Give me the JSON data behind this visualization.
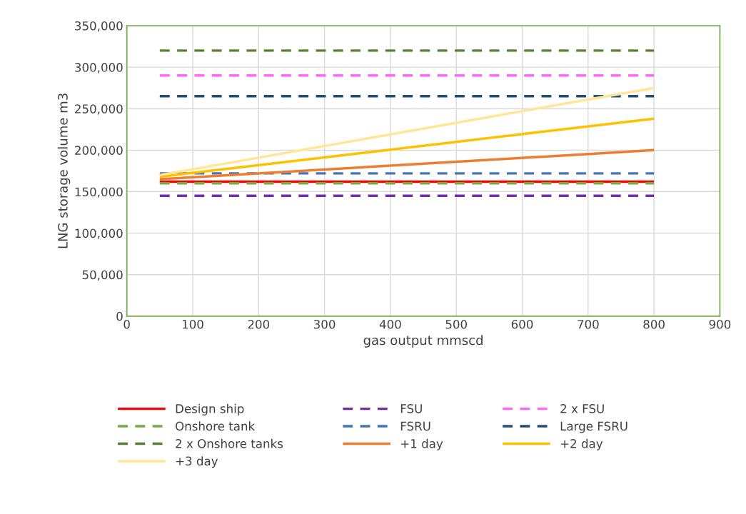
{
  "chart_data": {
    "type": "line",
    "xlabel": "gas output mmscd",
    "ylabel": "LNG storage volume m3",
    "x": [
      50,
      800
    ],
    "xlim": [
      0,
      900
    ],
    "xticks": [
      0,
      100,
      200,
      300,
      400,
      500,
      600,
      700,
      800,
      900
    ],
    "ylim": [
      0,
      350000
    ],
    "yticks": [
      {
        "value": 0,
        "label": "0"
      },
      {
        "value": 50000,
        "label": "50,000"
      },
      {
        "value": 100000,
        "label": "100,000"
      },
      {
        "value": 150000,
        "label": "150,000"
      },
      {
        "value": 200000,
        "label": "200,000"
      },
      {
        "value": 250000,
        "label": "250,000"
      },
      {
        "value": 300000,
        "label": "300,000"
      },
      {
        "value": 350000,
        "label": "350,000"
      }
    ],
    "grid": true,
    "legend": "bottom",
    "series": [
      {
        "name": "Design ship",
        "color": "#ff0000",
        "line_style": "solid",
        "values": [
          162000,
          162000
        ]
      },
      {
        "name": "FSU",
        "color": "#7030a0",
        "line_style": "dashed",
        "values": [
          145000,
          145000
        ]
      },
      {
        "name": "2 x FSU",
        "color": "#ff66ff",
        "line_style": "dashed",
        "values": [
          290000,
          290000
        ]
      },
      {
        "name": "Onshore tank",
        "color": "#70ad47",
        "line_style": "dashed",
        "values": [
          160000,
          160000
        ]
      },
      {
        "name": "FSRU",
        "color": "#4472c4",
        "line_style": "dashed",
        "values": [
          172000,
          172000
        ]
      },
      {
        "name": "Large FSRU",
        "color": "#1f4e79",
        "line_style": "dashed",
        "values": [
          265000,
          265000
        ]
      },
      {
        "name": "2 x Onshore tanks",
        "color": "#548235",
        "line_style": "dashed",
        "values": [
          320000,
          320000
        ]
      },
      {
        "name": "+1 day",
        "color": "#ed7d31",
        "line_style": "solid",
        "values": [
          165000,
          200000
        ]
      },
      {
        "name": "+2 day",
        "color": "#ffc000",
        "line_style": "solid",
        "values": [
          168000,
          238000
        ]
      },
      {
        "name": "+3 day",
        "color": "#ffe699",
        "line_style": "solid",
        "values": [
          170000,
          275000
        ]
      }
    ]
  }
}
